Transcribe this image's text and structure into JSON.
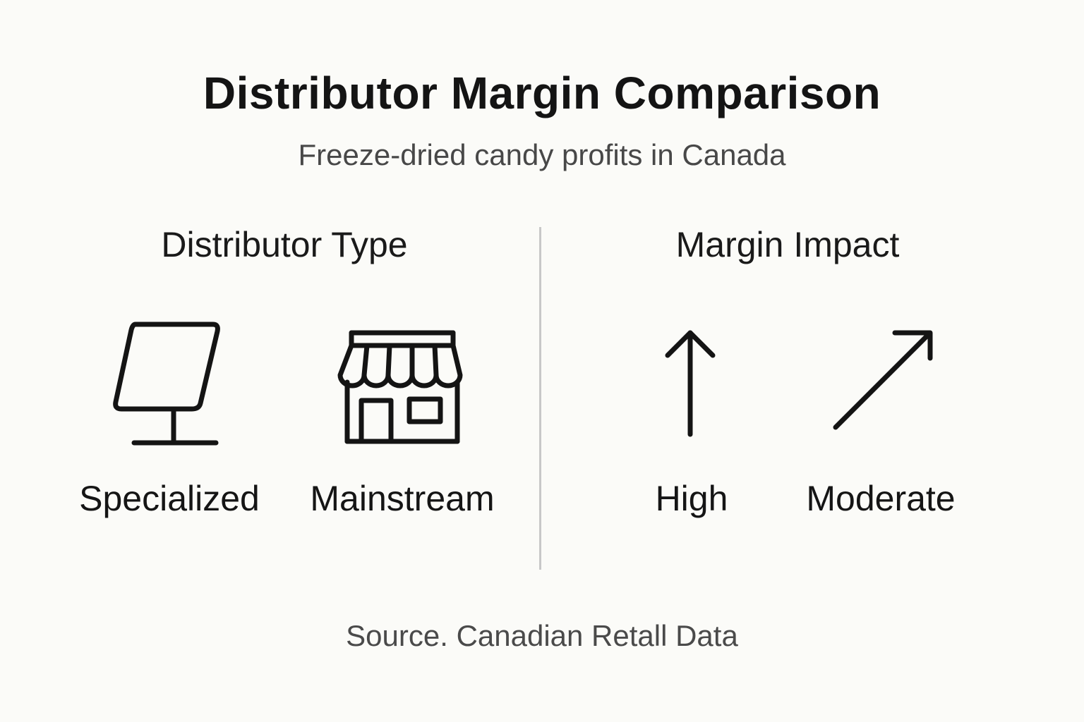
{
  "title": "Distributor Margin Comparison",
  "subtitle": "Freeze-dried candy profits in Canada",
  "columns": [
    {
      "heading": "Distributor Type",
      "items": [
        {
          "label": "Specialized",
          "icon": "display-stand-icon"
        },
        {
          "label": "Mainstream",
          "icon": "storefront-icon"
        }
      ]
    },
    {
      "heading": "Margin Impact",
      "items": [
        {
          "label": "High",
          "icon": "arrow-up-icon"
        },
        {
          "label": "Moderate",
          "icon": "arrow-up-right-icon"
        }
      ]
    }
  ],
  "source": "Source. Canadian Retall Data",
  "colors": {
    "background": "#fbfbf8",
    "ink": "#141414",
    "muted_text": "#484848",
    "divider": "#c8c8c8"
  }
}
